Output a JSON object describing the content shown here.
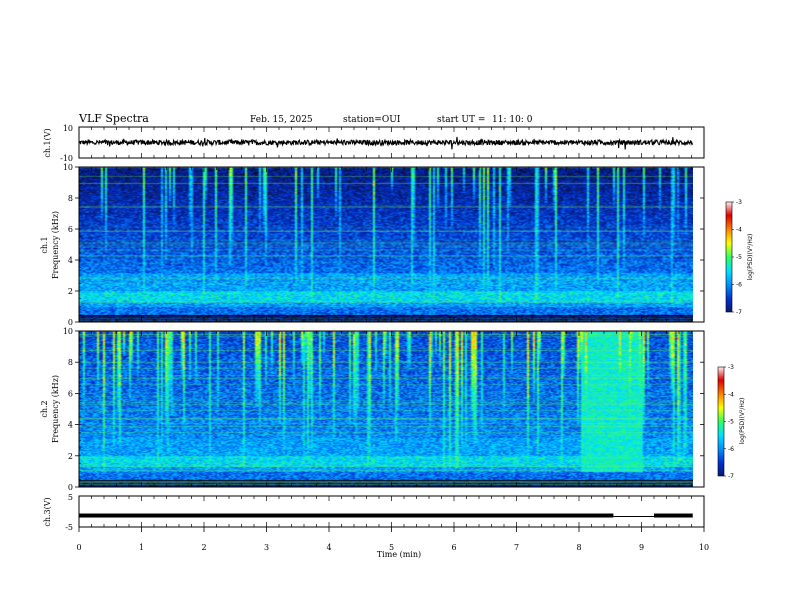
{
  "header": {
    "title": "VLF Spectra",
    "date": "Feb. 15, 2025",
    "station": "station=OUI",
    "start_label": "start  UT =",
    "start_time": "11: 10: 0"
  },
  "chart_data": [
    {
      "type": "line",
      "ylabel": "ch.1(V)",
      "ylim": [
        -10,
        10
      ],
      "yticks": [
        "10",
        "-10"
      ],
      "xlim": [
        0,
        10
      ],
      "trace": {
        "mean_v": 0,
        "color": "#000000"
      }
    },
    {
      "type": "heatmap",
      "ylabel_lines": [
        "ch.1",
        "Frequency  (kHz)"
      ],
      "ylim": [
        0,
        10
      ],
      "yticks": [
        "0",
        "2",
        "4",
        "6",
        "8",
        "10"
      ],
      "xlim": [
        0,
        9.82
      ],
      "colorbar": {
        "label": "log(PSD)(V²/Hz)",
        "ticks": [
          "-3",
          "-4",
          "-5",
          "-6",
          "-7"
        ],
        "range": [
          -7,
          -3
        ]
      }
    },
    {
      "type": "heatmap",
      "ylabel_lines": [
        "ch.2",
        "Frequency  (kHz)"
      ],
      "ylim": [
        0,
        10
      ],
      "yticks": [
        "0",
        "2",
        "4",
        "6",
        "8",
        "10"
      ],
      "xlim": [
        0,
        9.82
      ],
      "colorbar": {
        "label": "log(PSD)(V²/Hz)",
        "ticks": [
          "-3",
          "-4",
          "-5",
          "-6",
          "-7"
        ],
        "range": [
          -7,
          -3
        ]
      }
    },
    {
      "type": "line",
      "ylabel": "ch.3(V)",
      "ylim": [
        -5,
        5
      ],
      "yticks": [
        "5",
        "-5"
      ],
      "xlabel": "Time  (min)",
      "xlim": [
        0,
        10
      ],
      "xticks": [
        "0",
        "1",
        "2",
        "3",
        "4",
        "5",
        "6",
        "7",
        "8",
        "9",
        "10"
      ],
      "trace": {
        "level_v": -1.3,
        "gap_min": [
          8.55,
          9.2
        ],
        "gap_level_v": -1.6
      }
    }
  ],
  "colors": {
    "background": "#ffffff",
    "colormap": [
      "#000000",
      "#0a1a6e",
      "#0030d0",
      "#0090ff",
      "#00e0ff",
      "#30ff60",
      "#ffff00",
      "#ff8000",
      "#e00000",
      "#ffffff"
    ]
  }
}
